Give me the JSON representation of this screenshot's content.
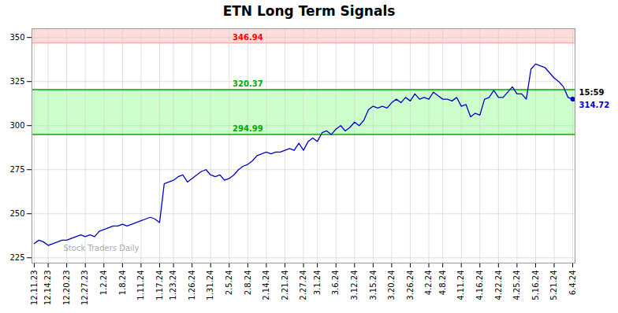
{
  "chart_data": {
    "type": "line",
    "title": "ETN Long Term Signals",
    "categories": [
      "12.11.23",
      null,
      null,
      "12.14.23",
      null,
      null,
      null,
      "12.20.23",
      null,
      null,
      null,
      "12.27.23",
      null,
      null,
      null,
      "1.2.24",
      null,
      null,
      null,
      "1.8.24",
      null,
      null,
      null,
      "1.11.24",
      null,
      null,
      null,
      "1.17.24",
      null,
      null,
      "1.23.24",
      null,
      null,
      null,
      "1.26.24",
      null,
      null,
      null,
      "1.31.24",
      null,
      null,
      null,
      "2.5.24",
      null,
      null,
      null,
      "2.8.24",
      null,
      null,
      null,
      "2.14.24",
      null,
      null,
      null,
      "2.21.24",
      null,
      null,
      null,
      "2.27.24",
      null,
      null,
      "3.1.24",
      null,
      null,
      null,
      "3.6.24",
      null,
      null,
      null,
      "3.12.24",
      null,
      null,
      null,
      "3.15.24",
      null,
      null,
      null,
      "3.20.24",
      null,
      null,
      null,
      "3.26.24",
      null,
      null,
      null,
      "4.2.24",
      null,
      null,
      "4.8.24",
      null,
      null,
      null,
      "4.11.24",
      null,
      null,
      null,
      "4.16.24",
      null,
      null,
      null,
      "4.22.24",
      null,
      null,
      null,
      "4.25.24",
      null,
      null,
      null,
      "5.16.24",
      null,
      null,
      null,
      "5.21.24",
      null,
      null,
      null,
      "6.4.24"
    ],
    "values": [
      233,
      235,
      234,
      232,
      233,
      234,
      235,
      235,
      236,
      237,
      238,
      237,
      238,
      237,
      240,
      241,
      242,
      243,
      243,
      244,
      243,
      244,
      245,
      246,
      247,
      248,
      247,
      245,
      267,
      268,
      269,
      271,
      272,
      268,
      270,
      272,
      274,
      275,
      272,
      271,
      272,
      269,
      270,
      272,
      275,
      277,
      278,
      280,
      283,
      284,
      285,
      284,
      285,
      285,
      286,
      287,
      286,
      290,
      286,
      291,
      293,
      291,
      296,
      297,
      295,
      298,
      300,
      297,
      299,
      302,
      300,
      303,
      309,
      311,
      310,
      311,
      310,
      313,
      315,
      313,
      316,
      314,
      318,
      315,
      316,
      315,
      319,
      317,
      315,
      315,
      314,
      316,
      311,
      312,
      305,
      307,
      306,
      315,
      316,
      320,
      316,
      316,
      319,
      322,
      318,
      318,
      315,
      332,
      335,
      334,
      333,
      330,
      327,
      325,
      322,
      316,
      315
    ],
    "color": "#0000cc",
    "ylim": [
      222,
      355
    ],
    "yticks": [
      225,
      250,
      275,
      300,
      325,
      350
    ],
    "grid": true,
    "bands": [
      {
        "from": 346.94,
        "color": "#ffdddd"
      },
      {
        "from": 294.99,
        "to": 320.37,
        "color": "#ccffcc"
      }
    ],
    "hlines": [
      {
        "y": 346.94,
        "color": "#ffaaaa"
      },
      {
        "y": 320.37,
        "color": "#00aa00"
      },
      {
        "y": 294.99,
        "color": "#00aa00"
      }
    ],
    "annotations": [
      {
        "text": "346.94",
        "y": 346.94,
        "color": "red"
      },
      {
        "text": "320.37",
        "y": 320.37,
        "color": "#00aa00"
      },
      {
        "text": "294.99",
        "y": 294.99,
        "color": "#00aa00"
      }
    ],
    "last_point": {
      "marker": "circle",
      "color": "#0000cc",
      "labels": [
        {
          "text": "15:59",
          "color": "black"
        },
        {
          "text": "314.72",
          "color": "#0000cc"
        }
      ]
    },
    "watermark": {
      "text": "Stock Traders Daily",
      "color": "#aaaaaa"
    }
  }
}
